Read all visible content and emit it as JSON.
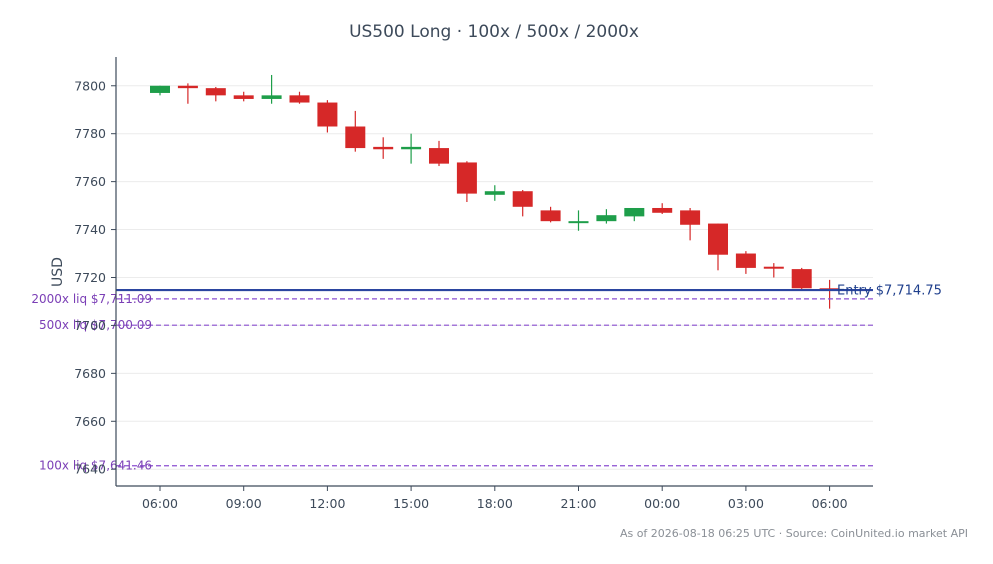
{
  "chart_data": {
    "type": "candlestick",
    "title": "US500 Long · 100x / 500x / 2000x",
    "ylabel": "USD",
    "xlabel": "",
    "ylim": [
      7633,
      7812
    ],
    "yticks": [
      7640,
      7660,
      7680,
      7700,
      7720,
      7740,
      7760,
      7780,
      7800
    ],
    "grid": "horizontal",
    "x_tick_labels": [
      "06:00",
      "09:00",
      "12:00",
      "15:00",
      "18:00",
      "21:00",
      "00:00",
      "03:00",
      "06:00"
    ],
    "x_tick_candle_index": [
      0,
      3,
      6,
      9,
      12,
      15,
      18,
      21,
      24
    ],
    "colors": {
      "up": "#1e9e4a",
      "down": "#d62828",
      "entry": "#2b45a0",
      "liq": "#8b4fd0"
    },
    "candles": [
      {
        "o": 7797.0,
        "h": 7800.0,
        "l": 7796.0,
        "c": 7800.0
      },
      {
        "o": 7800.0,
        "h": 7801.0,
        "l": 7792.5,
        "c": 7799.0
      },
      {
        "o": 7799.0,
        "h": 7799.5,
        "l": 7793.5,
        "c": 7796.0
      },
      {
        "o": 7796.0,
        "h": 7797.5,
        "l": 7793.5,
        "c": 7794.5
      },
      {
        "o": 7794.5,
        "h": 7804.5,
        "l": 7792.5,
        "c": 7796.0
      },
      {
        "o": 7796.0,
        "h": 7797.5,
        "l": 7792.5,
        "c": 7793.0
      },
      {
        "o": 7793.0,
        "h": 7794.0,
        "l": 7780.5,
        "c": 7783.0
      },
      {
        "o": 7783.0,
        "h": 7789.5,
        "l": 7772.5,
        "c": 7774.0
      },
      {
        "o": 7774.5,
        "h": 7778.5,
        "l": 7769.5,
        "c": 7773.5
      },
      {
        "o": 7773.5,
        "h": 7780.0,
        "l": 7767.5,
        "c": 7774.5
      },
      {
        "o": 7774.0,
        "h": 7777.0,
        "l": 7766.5,
        "c": 7767.5
      },
      {
        "o": 7768.0,
        "h": 7768.5,
        "l": 7751.5,
        "c": 7755.0
      },
      {
        "o": 7754.5,
        "h": 7758.5,
        "l": 7752.0,
        "c": 7756.0
      },
      {
        "o": 7756.0,
        "h": 7756.5,
        "l": 7745.5,
        "c": 7749.5
      },
      {
        "o": 7748.0,
        "h": 7749.5,
        "l": 7743.0,
        "c": 7743.5
      },
      {
        "o": 7743.5,
        "h": 7748.0,
        "l": 7739.5,
        "c": 7743.5
      },
      {
        "o": 7743.5,
        "h": 7748.5,
        "l": 7742.5,
        "c": 7746.0
      },
      {
        "o": 7745.5,
        "h": 7749.0,
        "l": 7743.5,
        "c": 7749.0
      },
      {
        "o": 7749.0,
        "h": 7751.0,
        "l": 7746.5,
        "c": 7747.0
      },
      {
        "o": 7748.0,
        "h": 7749.0,
        "l": 7735.5,
        "c": 7742.0
      },
      {
        "o": 7742.5,
        "h": 7742.5,
        "l": 7723.0,
        "c": 7729.5
      },
      {
        "o": 7730.0,
        "h": 7731.0,
        "l": 7721.5,
        "c": 7724.0
      },
      {
        "o": 7724.5,
        "h": 7726.0,
        "l": 7720.0,
        "c": 7724.0
      },
      {
        "o": 7723.5,
        "h": 7724.0,
        "l": 7715.0,
        "c": 7715.5
      },
      {
        "o": 7715.5,
        "h": 7719.0,
        "l": 7707.0,
        "c": 7715.0
      }
    ],
    "levels": [
      {
        "kind": "entry",
        "label": "Entry $7,714.75",
        "value": 7714.75
      },
      {
        "kind": "liq",
        "label": "2000x liq $7,711.09",
        "value": 7711.09
      },
      {
        "kind": "liq",
        "label": "500x liq $7,700.09",
        "value": 7700.09
      },
      {
        "kind": "liq",
        "label": "100x liq $7,641.46",
        "value": 7641.46
      }
    ],
    "footnote": "As of 2026-08-18 06:25 UTC · Source: CoinUnited.io market API"
  }
}
